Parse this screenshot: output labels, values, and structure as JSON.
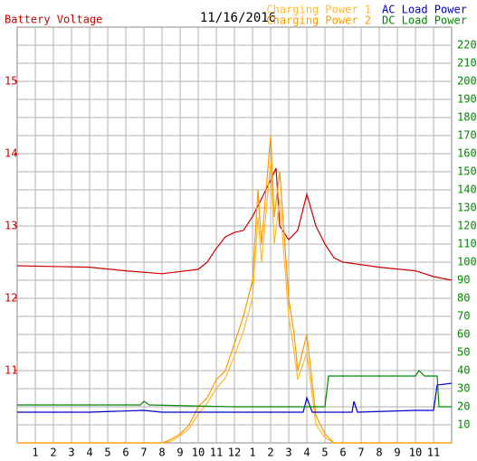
{
  "chart_data": {
    "type": "line",
    "title": "11/16/2016",
    "xlim": [
      0,
      24
    ],
    "xticks": [
      1,
      2,
      3,
      4,
      5,
      6,
      7,
      8,
      9,
      10,
      11,
      12,
      {
        "value": 13,
        "label": "1"
      },
      {
        "value": 14,
        "label": "2"
      },
      {
        "value": 15,
        "label": "3"
      },
      {
        "value": 16,
        "label": "4"
      },
      {
        "value": 17,
        "label": "5"
      },
      {
        "value": 18,
        "label": "6"
      },
      {
        "value": 19,
        "label": "7"
      },
      {
        "value": 20,
        "label": "8"
      },
      {
        "value": 21,
        "label": "9"
      },
      {
        "value": 22,
        "label": "10"
      },
      {
        "value": 23,
        "label": "11"
      }
    ],
    "ylim": [
      10,
      15.75
    ],
    "yticks": [
      11,
      12,
      13,
      14,
      15
    ],
    "y2lim": [
      0,
      230
    ],
    "y2ticks": [
      10,
      20,
      30,
      40,
      50,
      60,
      70,
      80,
      90,
      100,
      110,
      120,
      130,
      140,
      150,
      160,
      170,
      180,
      190,
      200,
      210,
      220
    ],
    "grid": true,
    "series": [
      {
        "name": "Battery Voltage",
        "color": "#cc0000",
        "x": [
          0,
          2,
          4,
          6,
          8,
          10,
          10.5,
          11,
          11.5,
          12,
          12.5,
          13,
          13.5,
          14,
          14.3,
          14.5,
          15,
          15.5,
          16,
          16.5,
          17,
          17.5,
          18,
          20,
          22,
          23,
          24
        ],
        "values": [
          12.45,
          12.44,
          12.43,
          12.38,
          12.34,
          12.4,
          12.5,
          12.69,
          12.85,
          12.91,
          12.94,
          13.13,
          13.38,
          13.63,
          13.8,
          13.0,
          12.81,
          12.94,
          13.44,
          13.0,
          12.75,
          12.56,
          12.5,
          12.43,
          12.38,
          12.3,
          12.25
        ]
      },
      {
        "name": "Charging Power 1",
        "color": "#ffb833",
        "axis": "y2",
        "x": [
          0,
          8,
          8.5,
          9,
          9.5,
          10,
          10.5,
          11,
          11.5,
          12,
          12.5,
          13,
          13.3,
          13.5,
          14,
          14.2,
          14.5,
          15,
          15.3,
          15.5,
          16,
          16.5,
          17,
          17.5,
          24
        ],
        "values": [
          0,
          0,
          1,
          4,
          8,
          16,
          22,
          30,
          36,
          48,
          62,
          80,
          125,
          100,
          155,
          110,
          135,
          70,
          50,
          35,
          50,
          10,
          3,
          0,
          0
        ]
      },
      {
        "name": "Charging Power 2",
        "color": "#ff9900",
        "axis": "y2",
        "x": [
          0,
          8,
          8.5,
          9,
          9.5,
          10,
          10.5,
          11,
          11.5,
          12,
          12.5,
          13,
          13.3,
          13.5,
          14,
          14.2,
          14.5,
          15,
          15.3,
          15.5,
          16,
          16.5,
          17,
          17.5,
          24
        ],
        "values": [
          0,
          0,
          2,
          5,
          10,
          20,
          25,
          35,
          40,
          55,
          70,
          90,
          140,
          110,
          170,
          125,
          150,
          80,
          60,
          40,
          60,
          15,
          5,
          0,
          0
        ]
      },
      {
        "name": "AC Load Power",
        "color": "#0000cc",
        "axis": "y2",
        "x": [
          0,
          4,
          7,
          8,
          12,
          15.8,
          16,
          16.3,
          17,
          18.5,
          18.6,
          18.8,
          22,
          23,
          23.2,
          24
        ],
        "values": [
          17,
          17,
          18,
          17,
          17,
          17,
          25,
          17,
          17,
          17,
          23,
          17,
          18,
          18,
          32,
          33
        ]
      },
      {
        "name": "DC Load Power",
        "color": "#008800",
        "axis": "y2",
        "x": [
          0,
          6.8,
          7,
          7.3,
          12,
          17,
          17.2,
          20,
          22,
          22.2,
          22.5,
          23.2,
          23.3,
          24
        ],
        "values": [
          21,
          21,
          23,
          21,
          20,
          20,
          37,
          37,
          37,
          40,
          37,
          37,
          20,
          20
        ]
      }
    ]
  }
}
